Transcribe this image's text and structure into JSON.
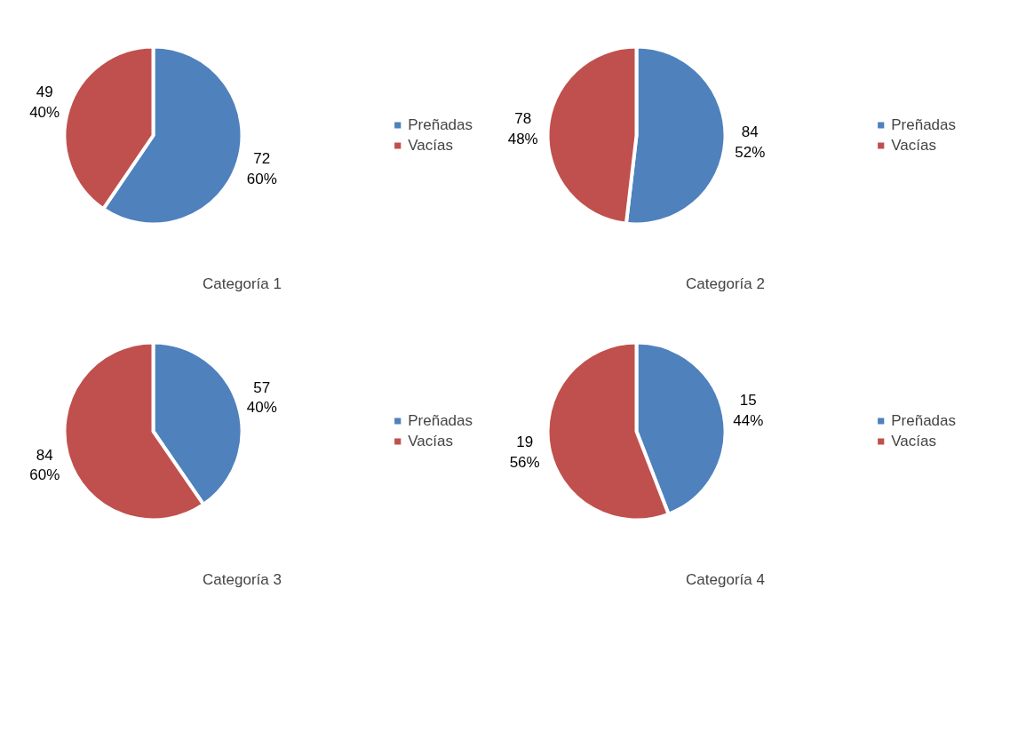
{
  "chart_data": [
    {
      "type": "pie",
      "title": "Categoría 1",
      "categories": [
        "Preñadas",
        "Vacías"
      ],
      "values": [
        72,
        49
      ],
      "colors": [
        "#4f81bd",
        "#c0504d"
      ],
      "value_labels": [
        "72\n60%",
        "49\n40%"
      ],
      "legend": "right"
    },
    {
      "type": "pie",
      "title": "Categoría 2",
      "categories": [
        "Preñadas",
        "Vacías"
      ],
      "values": [
        84,
        78
      ],
      "colors": [
        "#4f81bd",
        "#c0504d"
      ],
      "value_labels": [
        "84\n52%",
        "78\n48%"
      ],
      "legend": "right"
    },
    {
      "type": "pie",
      "title": "Categoría 3",
      "categories": [
        "Preñadas",
        "Vacías"
      ],
      "values": [
        57,
        84
      ],
      "colors": [
        "#4f81bd",
        "#c0504d"
      ],
      "value_labels": [
        "57\n40%",
        "84\n60%"
      ],
      "legend": "right"
    },
    {
      "type": "pie",
      "title": "Categoría 4",
      "categories": [
        "Preñadas",
        "Vacías"
      ],
      "values": [
        15,
        19
      ],
      "colors": [
        "#4f81bd",
        "#c0504d"
      ],
      "value_labels": [
        "15\n44%",
        "19\n56%"
      ],
      "legend": "right"
    }
  ]
}
